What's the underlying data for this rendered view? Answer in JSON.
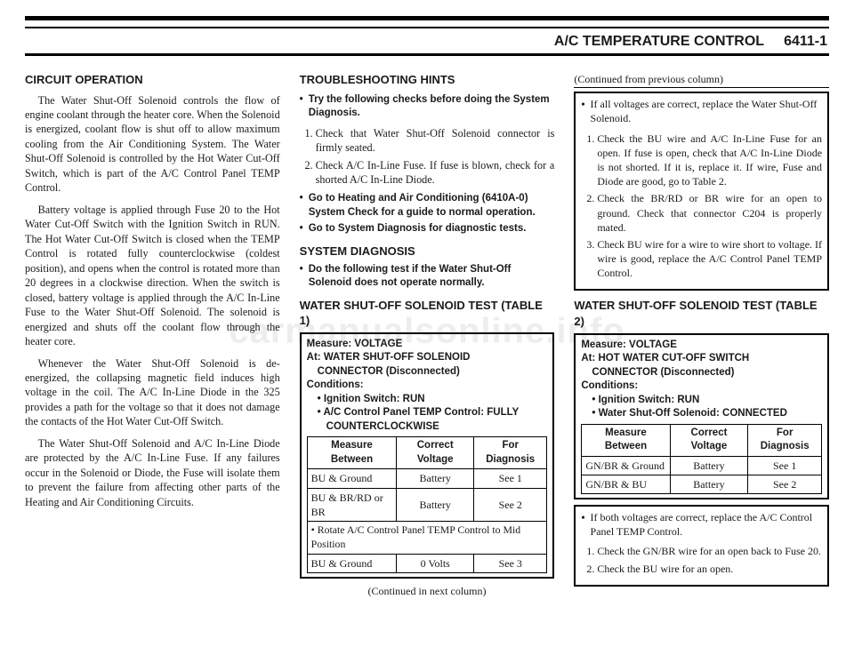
{
  "watermark": "carmanualsonline.info",
  "header": {
    "section_title": "A/C TEMPERATURE CONTROL",
    "page_code": "6411-1"
  },
  "col1": {
    "h": "CIRCUIT OPERATION",
    "p1": "The Water Shut-Off Solenoid controls the flow of engine coolant through the heater core. When the Solenoid is energized, coolant flow is shut off to allow maximum cooling from the Air Conditioning System. The Water Shut-Off Solenoid is controlled by the Hot Water Cut-Off Switch, which is part of the A/C Control Panel TEMP Control.",
    "p2": "Battery voltage is applied through Fuse 20 to the Hot Water Cut-Off Switch with the Ignition Switch in RUN. The Hot Water Cut-Off Switch is closed when the TEMP Control is rotated fully counterclockwise (coldest position), and opens when the control is rotated more than 20 degrees in a clockwise direction. When the switch is closed, battery voltage is applied through the A/C In-Line Fuse to the Water Shut-Off Solenoid. The solenoid is energized and shuts off the coolant flow through the heater core.",
    "p3": "Whenever the Water Shut-Off Solenoid is de-energized, the collapsing magnetic field induces high voltage in the coil. The A/C In-Line Diode in the 325 provides a path for the voltage so that it does not damage the contacts of the Hot Water Cut-Off Switch.",
    "p4": "The Water Shut-Off Solenoid and A/C In-Line Diode are protected by the A/C In-Line Fuse. If any failures occur in the Solenoid or Diode, the Fuse will isolate them to prevent the failure from affecting other parts of the Heating and Air Conditioning Circuits."
  },
  "col2": {
    "h1": "TROUBLESHOOTING HINTS",
    "bullets1": [
      "Try the following checks before doing the System Diagnosis."
    ],
    "num1": [
      "Check that Water Shut-Off Solenoid connector is firmly seated.",
      "Check A/C In-Line Fuse. If fuse is blown, check for a shorted A/C In-Line Diode."
    ],
    "bullets2": [
      "Go to Heating and Air Conditioning (6410A-0) System Check for a guide to normal operation.",
      "Go to System Diagnosis for diagnostic tests."
    ],
    "h2": "SYSTEM DIAGNOSIS",
    "bullets3": [
      "Do the following test if the Water Shut-Off Solenoid does not operate normally."
    ],
    "h3": "WATER SHUT-OFF SOLENOID TEST (TABLE 1)",
    "t1": {
      "cond": {
        "l1": "Measure: VOLTAGE",
        "l2": "At: WATER SHUT-OFF SOLENOID",
        "l2b": "CONNECTOR (Disconnected)",
        "l3": "Conditions:",
        "l4": "• Ignition Switch: RUN",
        "l5": "• A/C Control Panel TEMP Control: FULLY",
        "l5b": "COUNTERCLOCKWISE"
      },
      "head": [
        "Measure Between",
        "Correct Voltage",
        "For Diagnosis"
      ],
      "rows": [
        [
          "BU & Ground",
          "Battery",
          "See 1"
        ],
        [
          "BU & BR/RD or BR",
          "Battery",
          "See 2"
        ]
      ],
      "note": "• Rotate A/C Control Panel TEMP Control to Mid Position",
      "rows2": [
        [
          "BU & Ground",
          "0 Volts",
          "See 3"
        ]
      ]
    },
    "continued_next": "(Continued in next column)"
  },
  "col3": {
    "continued_prev": "(Continued from previous column)",
    "box1": {
      "bullets": [
        "If all voltages are correct, replace the Water Shut-Off Solenoid."
      ],
      "num": [
        "Check the BU wire and A/C In-Line Fuse for an open. If fuse is open, check that A/C In-Line Diode is not shorted. If it is, replace it. If wire, Fuse and Diode are good, go to Table 2.",
        "Check the BR/RD or BR wire for an open to ground. Check that connector C204 is properly mated.",
        "Check BU wire for a wire to wire short to voltage. If wire is good, replace the A/C Control Panel TEMP Control."
      ]
    },
    "h": "WATER SHUT-OFF SOLENOID TEST (TABLE 2)",
    "t2": {
      "cond": {
        "l1": "Measure: VOLTAGE",
        "l2": "At: HOT WATER CUT-OFF SWITCH",
        "l2b": "CONNECTOR (Disconnected)",
        "l3": "Conditions:",
        "l4": "• Ignition Switch: RUN",
        "l5": "• Water Shut-Off Solenoid: CONNECTED"
      },
      "head": [
        "Measure Between",
        "Correct Voltage",
        "For Diagnosis"
      ],
      "rows": [
        [
          "GN/BR & Ground",
          "Battery",
          "See 1"
        ],
        [
          "GN/BR & BU",
          "Battery",
          "See 2"
        ]
      ]
    },
    "box2": {
      "bullets": [
        "If both voltages are correct, replace the A/C Control Panel TEMP Control."
      ],
      "num": [
        "Check the GN/BR wire for an open back to Fuse 20.",
        "Check the BU wire for an open."
      ]
    }
  }
}
